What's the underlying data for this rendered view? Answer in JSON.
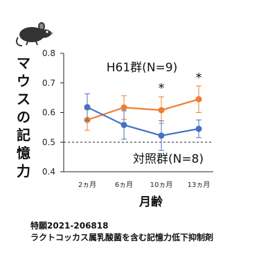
{
  "chart_data": {
    "type": "line",
    "x_categories": [
      "2ヵ月",
      "6ヵ月",
      "10ヵ月",
      "13ヵ月"
    ],
    "xlabel": "月齢",
    "ylabel": "マウスの記憶力",
    "ylim": [
      0.4,
      0.8
    ],
    "yticks": [
      "0.4",
      "0.5",
      "0.6",
      "0.7",
      "0.8"
    ],
    "reference_line": 0.5,
    "series": [
      {
        "name": "H61群(N=9)",
        "color": "#ee7d31",
        "values": [
          0.575,
          0.617,
          0.608,
          0.645
        ],
        "errors": [
          0.035,
          0.04,
          0.045,
          0.045
        ]
      },
      {
        "name": "対照群(N=8)",
        "color": "#4472c4",
        "values": [
          0.618,
          0.558,
          0.522,
          0.545
        ],
        "errors": [
          0.045,
          0.048,
          0.05,
          0.03
        ]
      }
    ],
    "annotations": [
      {
        "text": "*",
        "category": 2
      },
      {
        "text": "*",
        "category": 3
      }
    ]
  },
  "patent_number": "特願2021-206818",
  "patent_title": "ラクトコッカス属乳酸菌を含む記憶力低下抑制剤",
  "icon": "mouse-icon"
}
